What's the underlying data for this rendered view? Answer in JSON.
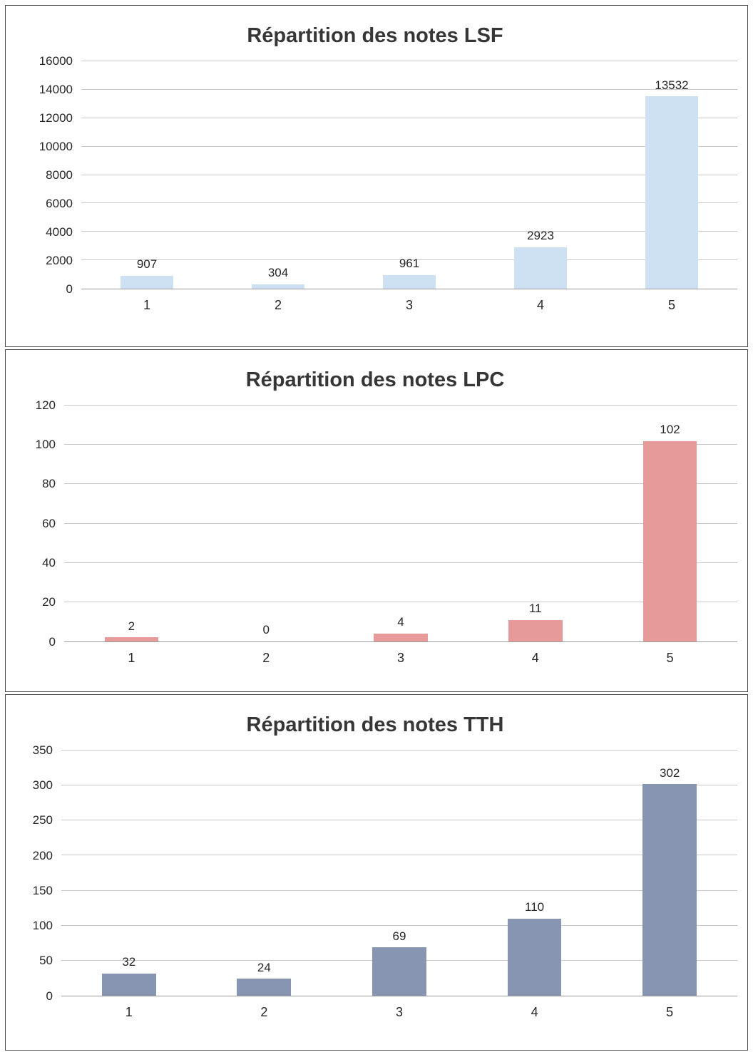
{
  "chart_data": [
    {
      "type": "bar",
      "title": "Répartition des notes LSF",
      "categories": [
        "1",
        "2",
        "3",
        "4",
        "5"
      ],
      "values": [
        907,
        304,
        961,
        2923,
        13532
      ],
      "value_labels": [
        "907",
        "304",
        "961",
        "2923",
        "13532"
      ],
      "yticks": [
        "0",
        "2000",
        "4000",
        "6000",
        "8000",
        "10000",
        "12000",
        "14000",
        "16000"
      ],
      "ylim": [
        0,
        16000
      ],
      "ytick_step": 2000,
      "xlabel": "",
      "ylabel": "",
      "grid": true,
      "legend": "none",
      "bar_color": "#cde1f3"
    },
    {
      "type": "bar",
      "title": "Répartition des notes LPC",
      "categories": [
        "1",
        "2",
        "3",
        "4",
        "5"
      ],
      "values": [
        2,
        0,
        4,
        11,
        102
      ],
      "value_labels": [
        "2",
        "0",
        "4",
        "11",
        "102"
      ],
      "yticks": [
        "0",
        "20",
        "40",
        "60",
        "80",
        "100",
        "120"
      ],
      "ylim": [
        0,
        120
      ],
      "ytick_step": 20,
      "xlabel": "",
      "ylabel": "",
      "grid": true,
      "legend": "none",
      "bar_color": "#e69a9a"
    },
    {
      "type": "bar",
      "title": "Répartition des notes TTH",
      "categories": [
        "1",
        "2",
        "3",
        "4",
        "5"
      ],
      "values": [
        32,
        24,
        69,
        110,
        302
      ],
      "value_labels": [
        "32",
        "24",
        "69",
        "110",
        "302"
      ],
      "yticks": [
        "0",
        "50",
        "100",
        "150",
        "200",
        "250",
        "300",
        "350"
      ],
      "ylim": [
        0,
        350
      ],
      "ytick_step": 50,
      "xlabel": "",
      "ylabel": "",
      "grid": true,
      "legend": "none",
      "bar_color": "#8795b2"
    }
  ]
}
